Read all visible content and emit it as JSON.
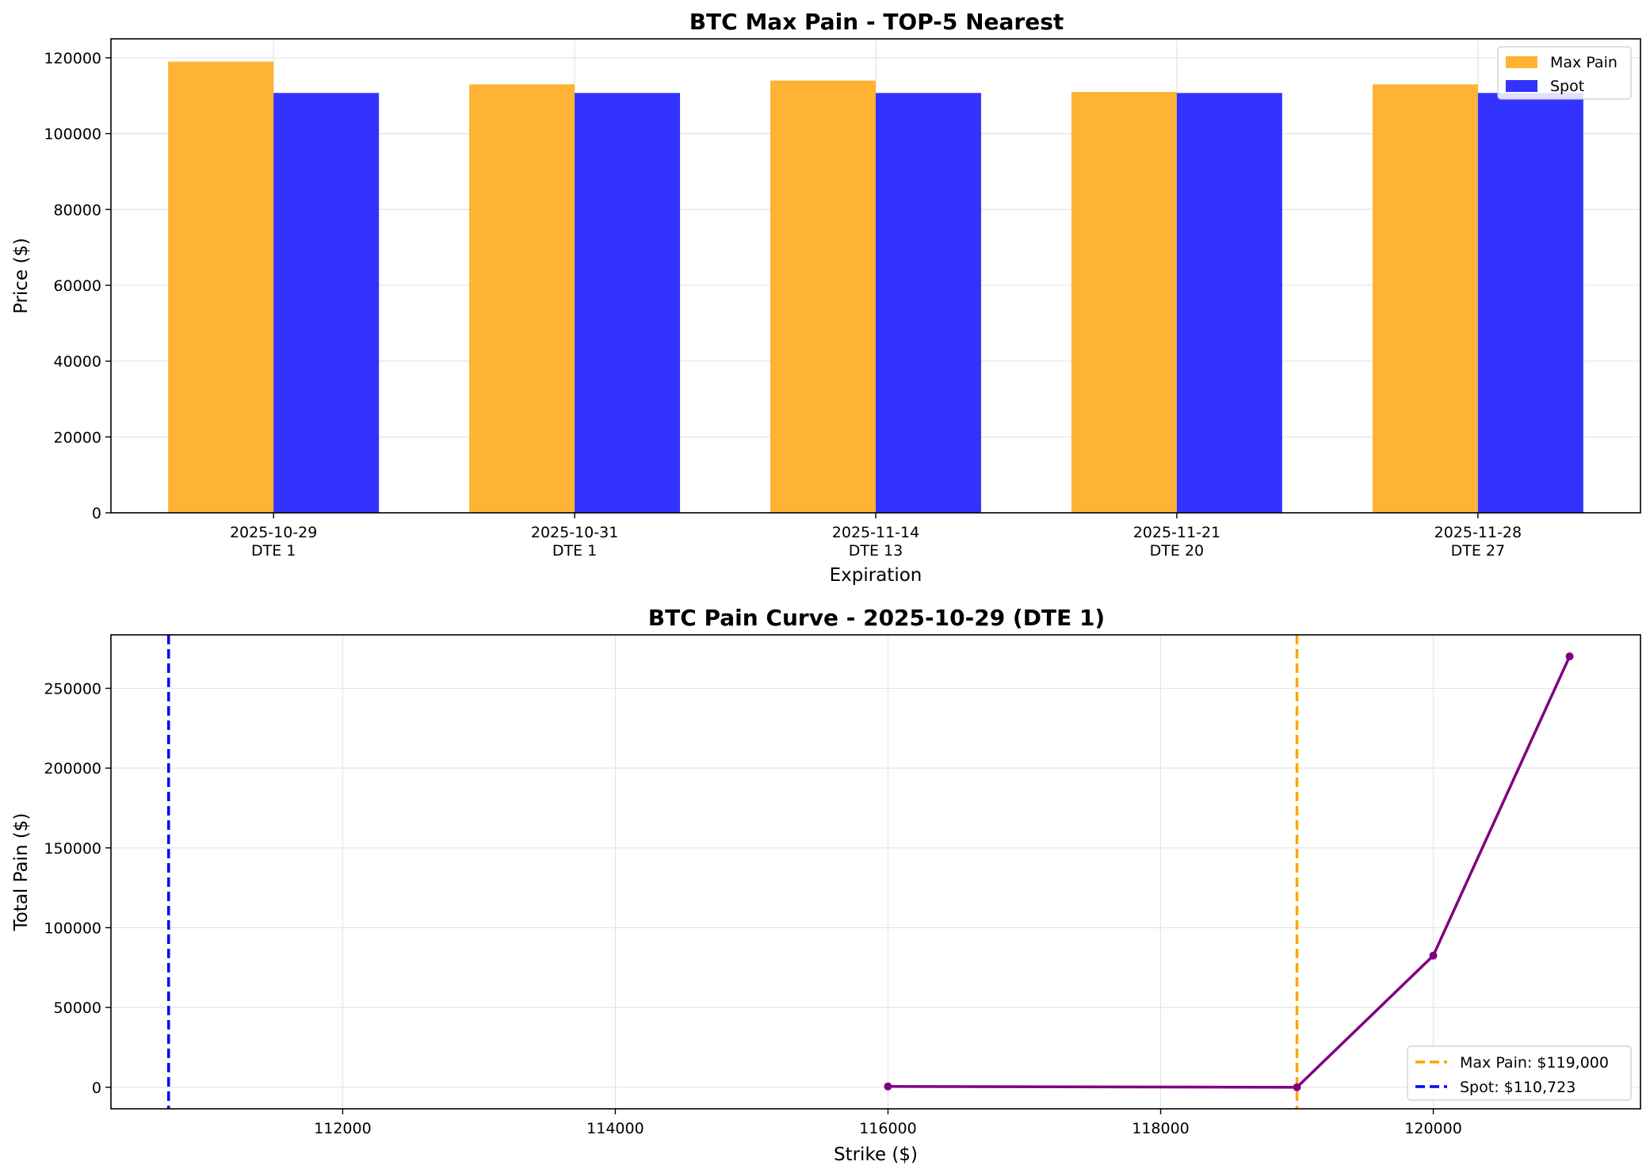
{
  "chart_data": [
    {
      "type": "bar",
      "title": "BTC Max Pain - TOP-5 Nearest",
      "xlabel": "Expiration",
      "ylabel": "Price ($)",
      "categories": [
        [
          "2025-10-29",
          "DTE 1"
        ],
        [
          "2025-10-31",
          "DTE 1"
        ],
        [
          "2025-11-14",
          "DTE 13"
        ],
        [
          "2025-11-21",
          "DTE 20"
        ],
        [
          "2025-11-28",
          "DTE 27"
        ]
      ],
      "series": [
        {
          "name": "Max Pain",
          "color": "#FFB334",
          "values": [
            119000,
            113000,
            114000,
            111000,
            113000
          ]
        },
        {
          "name": "Spot",
          "color": "#3333FF",
          "values": [
            110723,
            110723,
            110723,
            110723,
            110723
          ]
        }
      ],
      "ylim": [
        0,
        125000
      ],
      "yticks": [
        0,
        20000,
        40000,
        60000,
        80000,
        100000,
        120000
      ],
      "grid": true,
      "legend_position": "top-right"
    },
    {
      "type": "line",
      "title": "BTC Pain Curve - 2025-10-29 (DTE 1)",
      "xlabel": "Strike ($)",
      "ylabel": "Total Pain ($)",
      "series": [
        {
          "name": "",
          "color": "#800080",
          "x": [
            116000,
            119000,
            120000,
            121000
          ],
          "y": [
            500,
            0,
            82500,
            270000
          ]
        }
      ],
      "vlines": [
        {
          "label": "Max Pain: $119,000",
          "x": 119000,
          "color": "#FFA500",
          "style": "dashed"
        },
        {
          "label": "Spot: $110,723",
          "x": 110723,
          "color": "#0000FF",
          "style": "dashed"
        }
      ],
      "xlim": [
        110300,
        121520
      ],
      "ylim": [
        -13500,
        283500
      ],
      "xticks": [
        112000,
        114000,
        116000,
        118000,
        120000
      ],
      "yticks": [
        0,
        50000,
        100000,
        150000,
        200000,
        250000
      ],
      "grid": true,
      "legend_position": "lower-right"
    }
  ]
}
